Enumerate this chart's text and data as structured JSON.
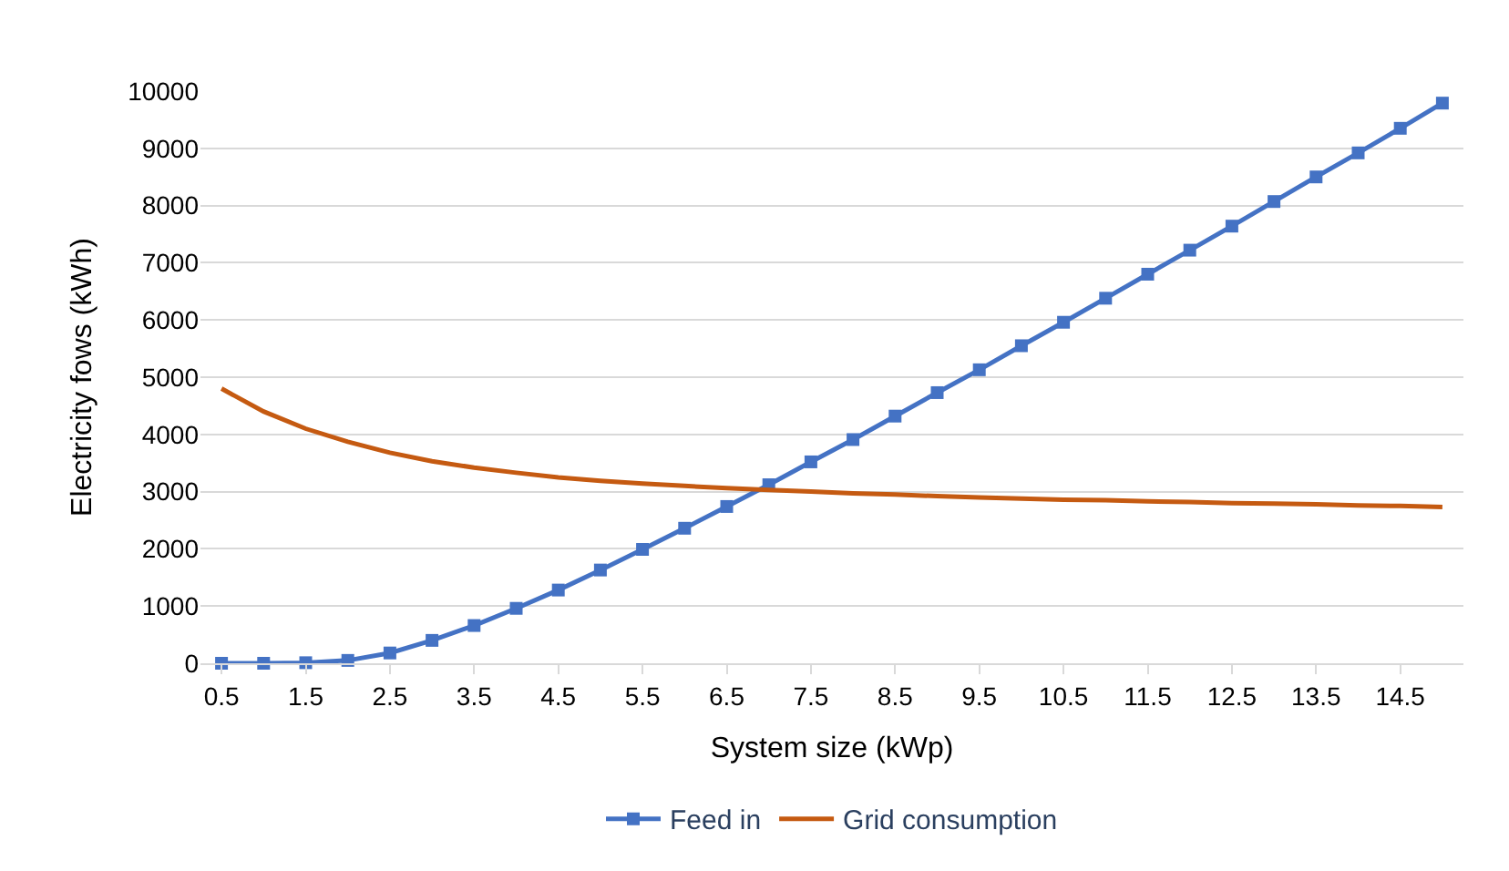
{
  "chart_data": {
    "type": "line",
    "xlabel": "System size (kWp)",
    "ylabel": "Electricity fows (kWh)",
    "categories": [
      "0.5",
      null,
      "1.5",
      null,
      "2.5",
      null,
      "3.5",
      null,
      "4.5",
      null,
      "5.5",
      null,
      "6.5",
      null,
      "7.5",
      null,
      "8.5",
      null,
      "9.5",
      null,
      "10.5",
      null,
      "11.5",
      null,
      "12.5",
      null,
      "13.5",
      null,
      "14.5",
      null
    ],
    "series": [
      {
        "name": "Feed in",
        "color": "#4472c4",
        "marker": "square",
        "values": [
          0,
          0,
          10,
          50,
          180,
          400,
          660,
          960,
          1280,
          1630,
          1990,
          2360,
          2740,
          3120,
          3520,
          3910,
          4320,
          4730,
          5130,
          5550,
          5960,
          6380,
          6800,
          7220,
          7640,
          8070,
          8500,
          8920,
          9350,
          9790
        ]
      },
      {
        "name": "Grid consumption",
        "color": "#c55a11",
        "marker": "none",
        "values": [
          4800,
          4400,
          4100,
          3870,
          3680,
          3530,
          3420,
          3330,
          3250,
          3190,
          3140,
          3100,
          3060,
          3030,
          3000,
          2970,
          2950,
          2920,
          2900,
          2880,
          2860,
          2850,
          2830,
          2820,
          2800,
          2790,
          2780,
          2760,
          2750,
          2730
        ]
      }
    ],
    "ylim": [
      0,
      10000
    ],
    "yticks": [
      0,
      1000,
      2000,
      3000,
      4000,
      5000,
      6000,
      7000,
      8000,
      9000,
      10000
    ],
    "grid": "y",
    "legend": "bottom",
    "line_style": "solid"
  }
}
